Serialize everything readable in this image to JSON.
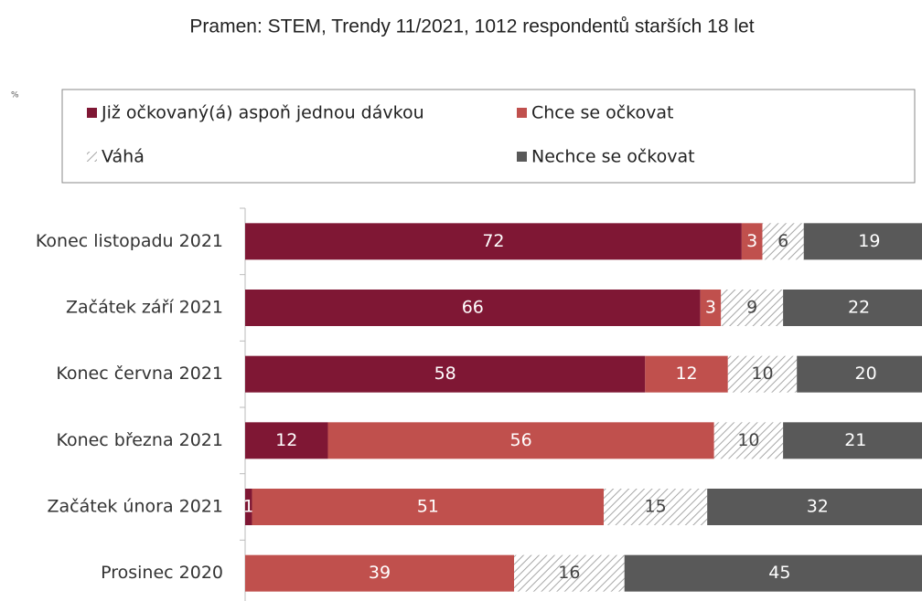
{
  "chart_data": {
    "type": "stacked_barh",
    "title": "Pramen: STEM, Trendy 11/2021, 1012 respondentů starších 18 let",
    "y_label": "%",
    "categories": [
      "Konec listopadu 2021",
      "Začátek září 2021",
      "Konec června 2021",
      "Konec března 2021",
      "Začátek února 2021",
      "Prosinec 2020"
    ],
    "series": [
      {
        "name": "Již očkovaný(á) aspoň jednou dávkou",
        "color": "#7f1734",
        "values": [
          72,
          66,
          58,
          12,
          1,
          0
        ]
      },
      {
        "name": "Chce se očkovat",
        "color": "#c0504d",
        "values": [
          3,
          3,
          12,
          56,
          51,
          39
        ]
      },
      {
        "name": "Váhá",
        "color": "#a6a6a6",
        "hatched": true,
        "values": [
          6,
          9,
          10,
          10,
          15,
          16
        ]
      },
      {
        "name": "Nechce se očkovat",
        "color": "#595959",
        "values": [
          19,
          22,
          20,
          21,
          32,
          45
        ]
      }
    ],
    "xlim": [
      0,
      100
    ],
    "data_labels": true
  }
}
